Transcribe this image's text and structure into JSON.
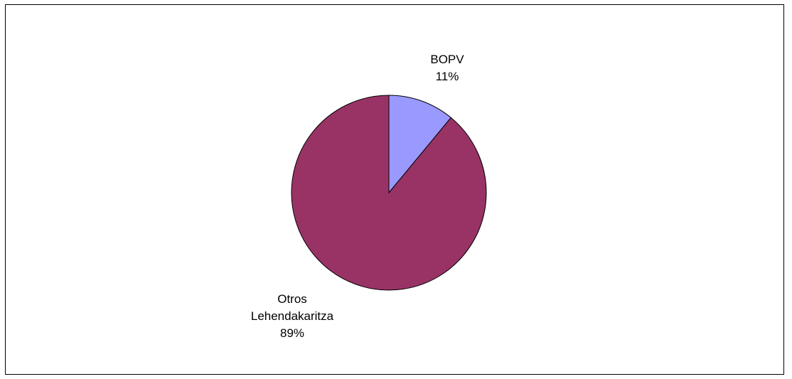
{
  "chart_data": {
    "type": "pie",
    "start_angle_deg": 0,
    "direction": "clockwise",
    "legend": "none",
    "slices": [
      {
        "label_lines": [
          "BOPV"
        ],
        "value": 11,
        "percent_label": "11%",
        "color": "#9999FF"
      },
      {
        "label_lines": [
          "Otros",
          "Lehendakaritza"
        ],
        "value": 89,
        "percent_label": "89%",
        "color": "#993366"
      }
    ]
  }
}
